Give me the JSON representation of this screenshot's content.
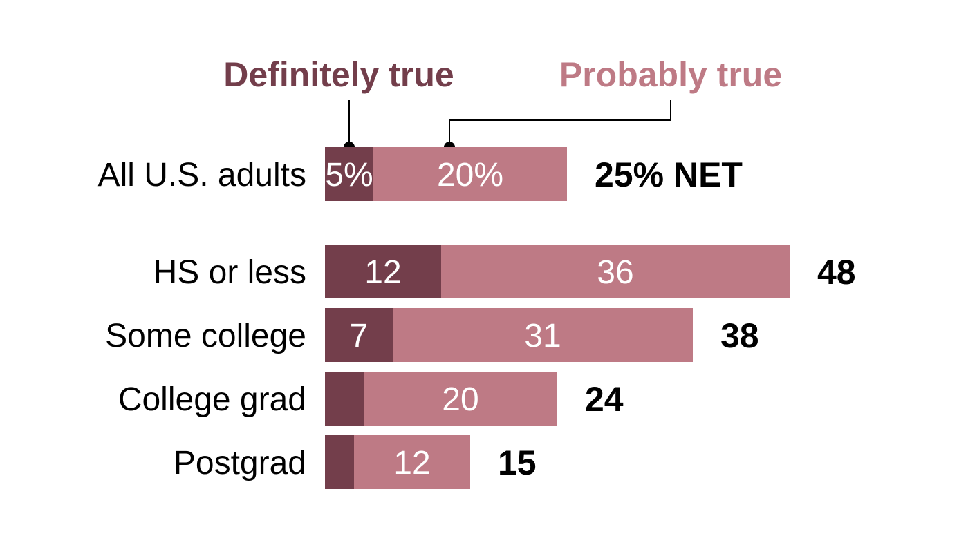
{
  "chart_data": {
    "type": "bar",
    "orientation": "horizontal",
    "stacked": true,
    "categories": [
      "All U.S. adults",
      "HS or less",
      "Some college",
      "College grad",
      "Postgrad"
    ],
    "series": [
      {
        "name": "Definitely true",
        "color": "#733e4b",
        "values": [
          5,
          12,
          7,
          4,
          3
        ],
        "labels": [
          "5%",
          "12",
          "7",
          "",
          ""
        ]
      },
      {
        "name": "Probably true",
        "color": "#be7a85",
        "values": [
          20,
          36,
          31,
          20,
          12
        ],
        "labels": [
          "20%",
          "36",
          "31",
          "20",
          "12"
        ]
      }
    ],
    "totals": [
      25,
      48,
      38,
      24,
      15
    ],
    "total_labels": [
      "25% NET",
      "48",
      "38",
      "24",
      "15"
    ],
    "grid": false,
    "legend": "top"
  }
}
